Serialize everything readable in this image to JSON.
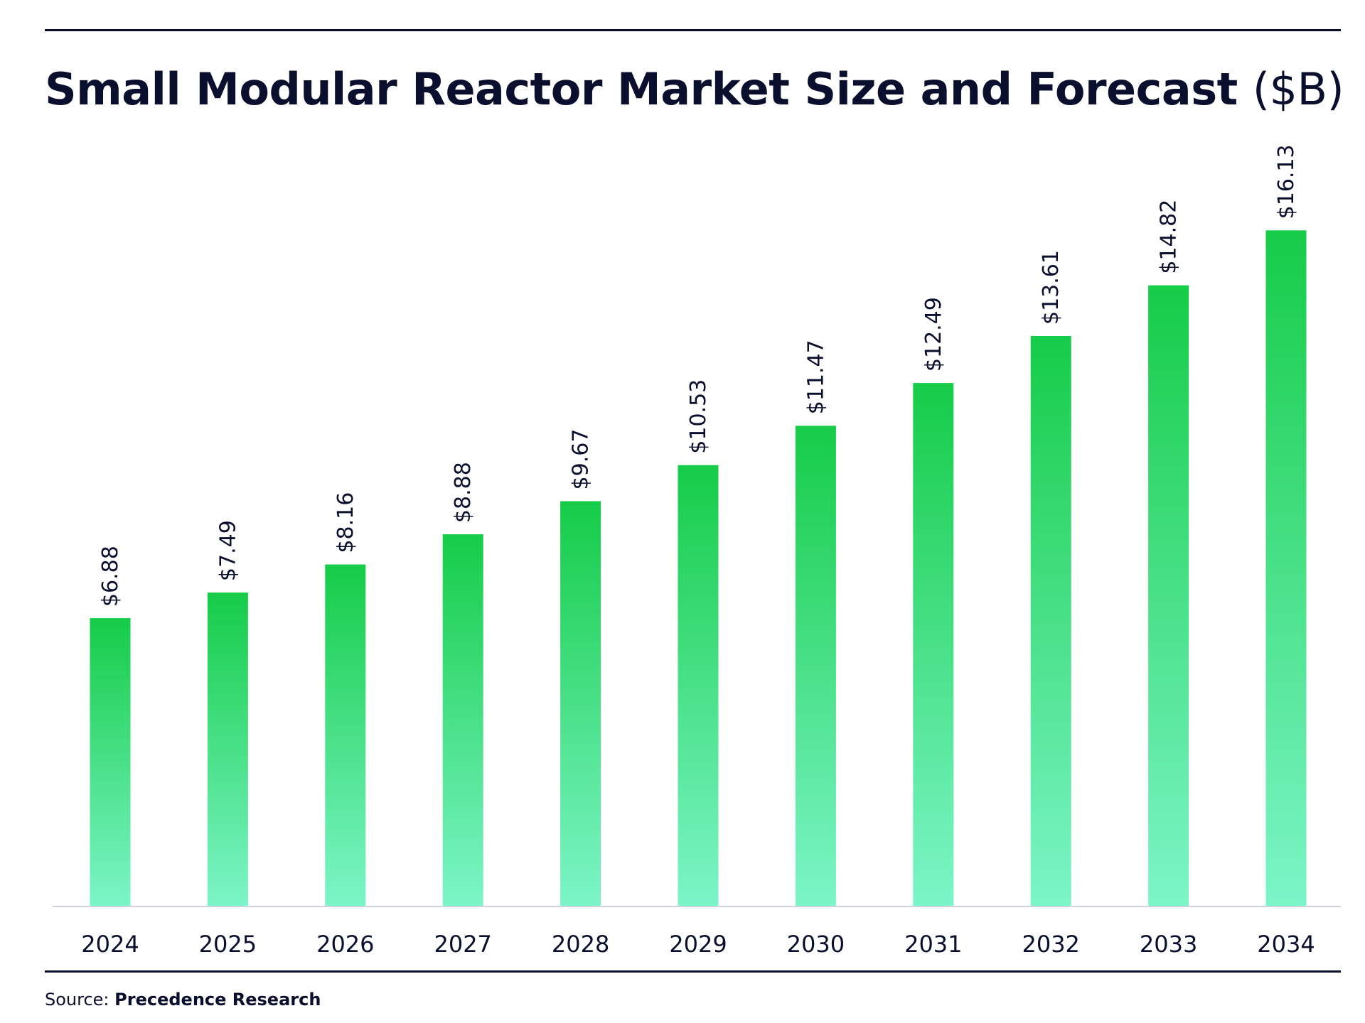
{
  "title": {
    "main": "Small Modular Reactor Market Size and Forecast",
    "unit": "($B)"
  },
  "source": {
    "label": "Source:",
    "name": "Precedence Research"
  },
  "colors": {
    "text": "#0b0f2e",
    "bar_top": "#16cc48",
    "bar_bottom": "#7cf5c8",
    "axis_line": "#cfd3dc"
  },
  "chart_data": {
    "type": "bar",
    "title": "Small Modular Reactor Market Size and Forecast ($B)",
    "categories": [
      "2024",
      "2025",
      "2026",
      "2027",
      "2028",
      "2029",
      "2030",
      "2031",
      "2032",
      "2033",
      "2034"
    ],
    "values": [
      6.88,
      7.49,
      8.16,
      8.88,
      9.67,
      10.53,
      11.47,
      12.49,
      13.61,
      14.82,
      16.13
    ],
    "data_labels": [
      "$6.88",
      "$7.49",
      "$8.16",
      "$8.88",
      "$9.67",
      "$10.53",
      "$11.47",
      "$12.49",
      "$13.61",
      "$14.82",
      "$16.13"
    ],
    "xlabel": "",
    "ylabel": "",
    "ylim": [
      0,
      18
    ],
    "grid": false,
    "legend": "none"
  }
}
